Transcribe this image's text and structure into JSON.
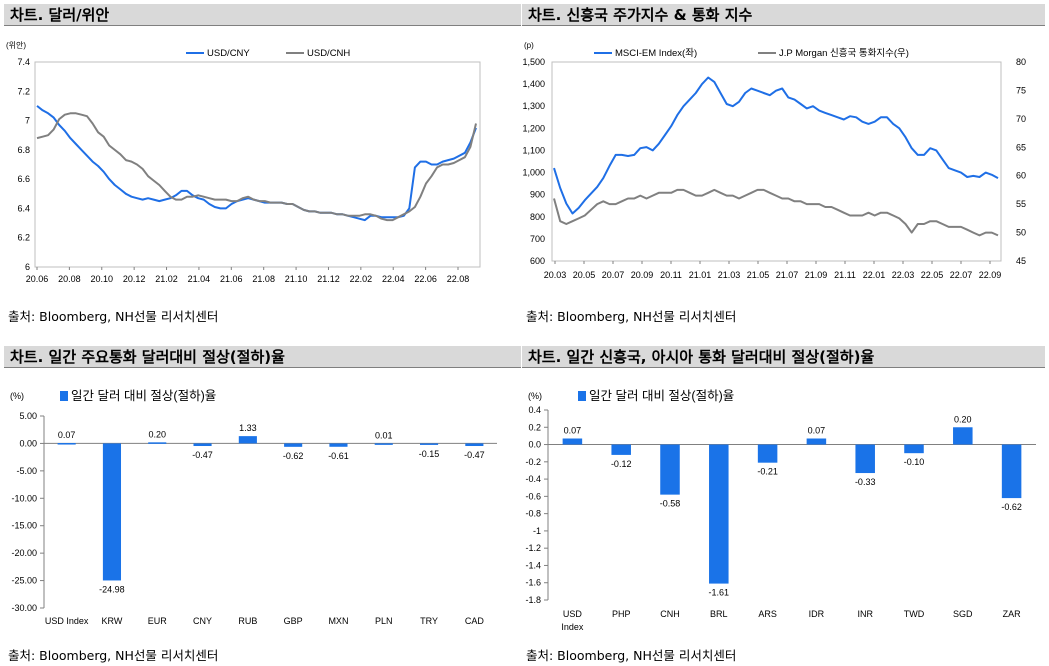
{
  "panels": {
    "p1": {
      "title": "차트. 달러/위안",
      "source": "출처: Bloomberg, NH선물 리서치센터"
    },
    "p2": {
      "title": "차트. 신흥국 주가지수 & 통화 지수",
      "source": "출처: Bloomberg, NH선물 리서치센터"
    },
    "p3": {
      "title": "차트. 일간 주요통화 달러대비 절상(절하)율",
      "source": "출처: Bloomberg, NH선물 리서치센터"
    },
    "p4": {
      "title": "차트. 일간 신흥국, 아시아 통화 달러대비 절상(절하)율",
      "source": "출처: Bloomberg, NH선물 리서치센터"
    }
  },
  "colors": {
    "blue": "#1f6fe6",
    "gray": "#7f7f7f",
    "bar": "#1a73e8"
  },
  "chart_data": [
    {
      "type": "line",
      "title": "차트. 달러/위안",
      "ylabel": "(위안)",
      "ylim": [
        6,
        7.4
      ],
      "yticks": [
        "6",
        "6.2",
        "6.4",
        "6.6",
        "6.8",
        "7",
        "7.2",
        "7.4"
      ],
      "xticks": [
        "20.06",
        "20.08",
        "20.10",
        "20.12",
        "21.02",
        "21.04",
        "21.06",
        "21.08",
        "21.10",
        "21.12",
        "22.02",
        "22.04",
        "22.06",
        "22.08"
      ],
      "legend_position": "top",
      "series": [
        {
          "name": "USD/CNY",
          "color": "#1f6fe6",
          "values": [
            7.1,
            7.07,
            7.05,
            7.02,
            6.97,
            6.93,
            6.88,
            6.84,
            6.8,
            6.76,
            6.72,
            6.69,
            6.65,
            6.6,
            6.56,
            6.53,
            6.5,
            6.48,
            6.47,
            6.46,
            6.47,
            6.46,
            6.45,
            6.46,
            6.47,
            6.49,
            6.52,
            6.52,
            6.49,
            6.47,
            6.46,
            6.43,
            6.41,
            6.4,
            6.4,
            6.43,
            6.45,
            6.46,
            6.47,
            6.46,
            6.45,
            6.44,
            6.44,
            6.44,
            6.44,
            6.43,
            6.43,
            6.41,
            6.39,
            6.38,
            6.38,
            6.37,
            6.37,
            6.37,
            6.36,
            6.36,
            6.35,
            6.34,
            6.33,
            6.32,
            6.35,
            6.35,
            6.34,
            6.34,
            6.34,
            6.34,
            6.35,
            6.4,
            6.68,
            6.72,
            6.72,
            6.7,
            6.7,
            6.72,
            6.73,
            6.74,
            6.76,
            6.78,
            6.85,
            6.95
          ]
        },
        {
          "name": "USD/CNH",
          "color": "#808080",
          "values": [
            6.88,
            6.89,
            6.9,
            6.94,
            7.01,
            7.04,
            7.05,
            7.05,
            7.04,
            7.03,
            6.98,
            6.92,
            6.89,
            6.83,
            6.8,
            6.77,
            6.73,
            6.72,
            6.7,
            6.67,
            6.62,
            6.59,
            6.56,
            6.52,
            6.48,
            6.46,
            6.46,
            6.48,
            6.48,
            6.49,
            6.48,
            6.47,
            6.46,
            6.46,
            6.46,
            6.45,
            6.45,
            6.47,
            6.48,
            6.46,
            6.45,
            6.45,
            6.44,
            6.44,
            6.44,
            6.43,
            6.43,
            6.41,
            6.39,
            6.38,
            6.38,
            6.37,
            6.37,
            6.37,
            6.36,
            6.36,
            6.35,
            6.35,
            6.35,
            6.36,
            6.36,
            6.35,
            6.33,
            6.32,
            6.32,
            6.34,
            6.36,
            6.38,
            6.41,
            6.48,
            6.57,
            6.62,
            6.68,
            6.7,
            6.7,
            6.71,
            6.73,
            6.75,
            6.82,
            6.98
          ]
        }
      ]
    },
    {
      "type": "line",
      "title": "차트. 신흥국 주가지수 & 통화 지수",
      "ylabel": "(p)",
      "ylim_left": [
        600,
        1500
      ],
      "ylim_right": [
        45,
        80
      ],
      "yticks_left": [
        "600",
        "700",
        "800",
        "900",
        "1,000",
        "1,100",
        "1,200",
        "1,300",
        "1,400",
        "1,500"
      ],
      "yticks_right": [
        "45",
        "50",
        "55",
        "60",
        "65",
        "70",
        "75",
        "80"
      ],
      "xticks": [
        "20.03",
        "20.05",
        "20.07",
        "20.09",
        "20.11",
        "21.01",
        "21.03",
        "21.05",
        "21.07",
        "21.09",
        "21.11",
        "22.01",
        "22.03",
        "22.05",
        "22.07",
        "22.09"
      ],
      "legend_position": "top",
      "series": [
        {
          "name": "MSCI-EM Index(좌)",
          "axis": "left",
          "color": "#1f6fe6",
          "values": [
            1020,
            930,
            860,
            815,
            840,
            875,
            905,
            935,
            975,
            1030,
            1080,
            1080,
            1075,
            1080,
            1110,
            1115,
            1100,
            1130,
            1170,
            1210,
            1260,
            1300,
            1330,
            1360,
            1400,
            1430,
            1410,
            1360,
            1310,
            1300,
            1320,
            1360,
            1380,
            1370,
            1360,
            1350,
            1370,
            1380,
            1340,
            1330,
            1310,
            1290,
            1300,
            1280,
            1270,
            1260,
            1250,
            1240,
            1255,
            1250,
            1230,
            1220,
            1230,
            1250,
            1250,
            1220,
            1200,
            1160,
            1110,
            1080,
            1080,
            1110,
            1100,
            1060,
            1020,
            1010,
            1000,
            980,
            985,
            980,
            1000,
            990,
            975
          ]
        },
        {
          "name": "J.P Morgan 신흥국 통화지수(우)",
          "axis": "right",
          "color": "#808080",
          "values": [
            56,
            52,
            51.5,
            52,
            52.5,
            53,
            54,
            55,
            55.5,
            55,
            55,
            55.5,
            56,
            56,
            56.5,
            56,
            56.5,
            57,
            57,
            57,
            57.5,
            57.5,
            57,
            56.5,
            56.5,
            57,
            57.5,
            57,
            56.5,
            56.5,
            56,
            56.5,
            57,
            57.5,
            57.5,
            57,
            56.5,
            56,
            56,
            55.5,
            55.5,
            55,
            55,
            55,
            54.5,
            54.5,
            54,
            53.5,
            53,
            53,
            53,
            53.5,
            53,
            53.5,
            53.5,
            53,
            52.5,
            51.5,
            50,
            51.5,
            51.5,
            52,
            52,
            51.5,
            51,
            51,
            51,
            50.5,
            50,
            49.5,
            50,
            50,
            49.5
          ]
        }
      ]
    },
    {
      "type": "bar",
      "title": "차트. 일간 주요통화 달러대비 절상(절하)율",
      "ylabel": "(%)",
      "ylim": [
        -30,
        5
      ],
      "yticks": [
        "5.00",
        "0.00",
        "-5.00",
        "-10.00",
        "-15.00",
        "-20.00",
        "-25.00",
        "-30.00"
      ],
      "legend_position": "top-left",
      "categories": [
        "USD Index",
        "KRW",
        "EUR",
        "CNY",
        "RUB",
        "GBP",
        "MXN",
        "PLN",
        "TRY",
        "CAD"
      ],
      "series": [
        {
          "name": "일간 달러 대비 절상(절하)율",
          "values": [
            0.07,
            -24.98,
            0.2,
            -0.47,
            1.33,
            -0.62,
            -0.61,
            0.01,
            -0.15,
            -0.47
          ],
          "labels": [
            "0.07",
            "-24.98",
            "0.20",
            "-0.47",
            "1.33",
            "-0.62",
            "-0.61",
            "0.01",
            "-0.15",
            "-0.47"
          ]
        }
      ]
    },
    {
      "type": "bar",
      "title": "차트. 일간 신흥국, 아시아 통화 달러대비 절상(절하)율",
      "ylabel": "(%)",
      "ylim": [
        -1.8,
        0.4
      ],
      "yticks": [
        "0.4",
        "0.2",
        "0.0",
        "-0.2",
        "-0.4",
        "-0.6",
        "-0.8",
        "-1",
        "-1.2",
        "-1.4",
        "-1.6",
        "-1.8"
      ],
      "legend_position": "top-left",
      "categories": [
        "USD Index",
        "PHP",
        "CNH",
        "BRL",
        "ARS",
        "IDR",
        "INR",
        "TWD",
        "SGD",
        "ZAR"
      ],
      "series": [
        {
          "name": "일간 달러 대비 절상(절하)율",
          "values": [
            0.07,
            -0.12,
            -0.58,
            -1.61,
            -0.21,
            0.07,
            -0.33,
            -0.1,
            0.2,
            -0.62
          ],
          "labels": [
            "0.07",
            "-0.12",
            "-0.58",
            "-1.61",
            "-0.21",
            "0.07",
            "-0.33",
            "-0.10",
            "0.20",
            "-0.62"
          ]
        }
      ]
    }
  ]
}
